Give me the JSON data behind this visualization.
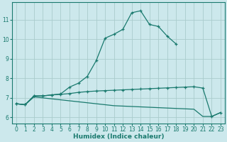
{
  "xlabel": "Humidex (Indice chaleur)",
  "bg_color": "#cce8ec",
  "grid_color": "#aacccc",
  "line_color": "#1a7a6e",
  "x_values": [
    0,
    1,
    2,
    3,
    4,
    5,
    6,
    7,
    8,
    9,
    10,
    11,
    12,
    13,
    14,
    15,
    16,
    17,
    18,
    19,
    20,
    21,
    22,
    23
  ],
  "line1_x": [
    0,
    1,
    2,
    3,
    4,
    5,
    6,
    7,
    8,
    9,
    10,
    11,
    12,
    13,
    14,
    15,
    16,
    17,
    18
  ],
  "line1_y": [
    6.7,
    6.65,
    7.1,
    7.1,
    7.15,
    7.2,
    7.55,
    7.75,
    8.1,
    8.9,
    10.05,
    10.25,
    10.5,
    11.35,
    11.45,
    10.75,
    10.65,
    10.15,
    9.75
  ],
  "line2_x": [
    0,
    1,
    2,
    3,
    4,
    5,
    6,
    7,
    8,
    9,
    10,
    11,
    12,
    13,
    14,
    15,
    16,
    17,
    18,
    19,
    20,
    21,
    22,
    23
  ],
  "line2_y": [
    6.7,
    6.65,
    7.1,
    7.1,
    7.15,
    7.18,
    7.22,
    7.28,
    7.32,
    7.35,
    7.37,
    7.39,
    7.41,
    7.43,
    7.45,
    7.47,
    7.49,
    7.51,
    7.53,
    7.55,
    7.57,
    7.5,
    6.05,
    6.25
  ],
  "line3_x": [
    0,
    1,
    2,
    3,
    4,
    5,
    6,
    7,
    8,
    9,
    10,
    11,
    12,
    13,
    14,
    15,
    16,
    17,
    18,
    19,
    20,
    21,
    22,
    23
  ],
  "line3_y": [
    6.7,
    6.65,
    7.05,
    7.0,
    6.95,
    6.9,
    6.85,
    6.8,
    6.75,
    6.7,
    6.65,
    6.6,
    6.58,
    6.56,
    6.54,
    6.52,
    6.5,
    6.48,
    6.46,
    6.44,
    6.42,
    6.05,
    6.05,
    6.25
  ],
  "ylim": [
    5.7,
    11.9
  ],
  "xlim": [
    -0.5,
    23.5
  ],
  "yticks": [
    6,
    7,
    8,
    9,
    10,
    11
  ],
  "xticks": [
    0,
    1,
    2,
    3,
    4,
    5,
    6,
    7,
    8,
    9,
    10,
    11,
    12,
    13,
    14,
    15,
    16,
    17,
    18,
    19,
    20,
    21,
    22,
    23
  ]
}
